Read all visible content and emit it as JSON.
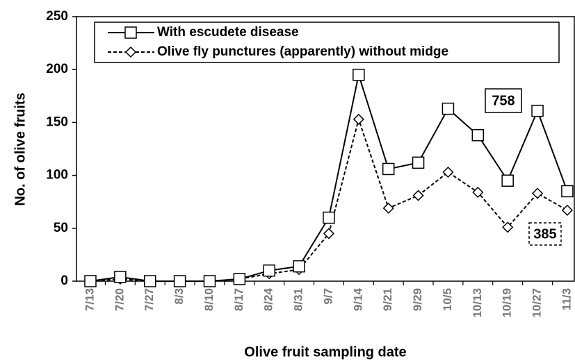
{
  "chart_data": {
    "type": "line",
    "x_label": "Olive fruit sampling date",
    "y_label": "No. of olive fruits",
    "categories": [
      "7/13",
      "7/20",
      "7/27",
      "8/3",
      "8/10",
      "8/17",
      "8/24",
      "8/31",
      "9/7",
      "9/14",
      "9/21",
      "9/29",
      "10/5",
      "10/13",
      "10/19",
      "10/27",
      "11/3"
    ],
    "series": [
      {
        "name": "With escudete disease",
        "color": "#000000",
        "line_style": "solid",
        "marker": "square",
        "values": [
          0,
          4,
          0,
          0,
          0,
          2,
          10,
          14,
          60,
          195,
          106,
          112,
          163,
          138,
          95,
          161,
          85
        ]
      },
      {
        "name": "Olive fly punctures (apparently) without midge",
        "color": "#000000",
        "line_style": "dashed",
        "marker": "diamond",
        "values": [
          0,
          2,
          0,
          0,
          0,
          2,
          7,
          11,
          45,
          153,
          69,
          81,
          103,
          84,
          51,
          83,
          67
        ]
      }
    ],
    "annotations": [
      {
        "text": "758",
        "border": "solid"
      },
      {
        "text": "385",
        "border": "dashed"
      }
    ],
    "ylim": [
      0,
      250
    ],
    "yticks": [
      0,
      50,
      100,
      150,
      200,
      250
    ],
    "grid": false,
    "legend": "top"
  }
}
